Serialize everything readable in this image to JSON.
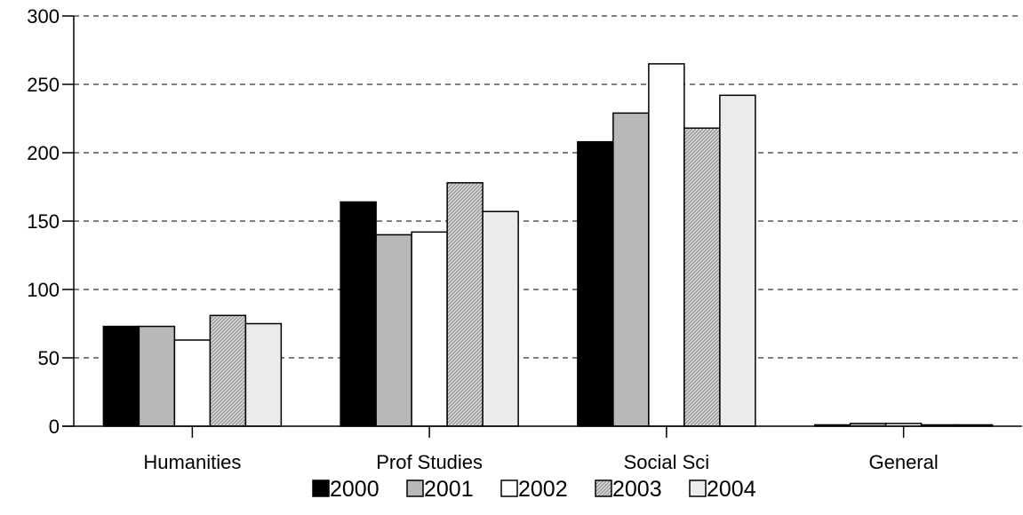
{
  "chart_data": {
    "type": "bar",
    "categories": [
      "Humanities",
      "Prof Studies",
      "Social Sci",
      "General"
    ],
    "series": [
      {
        "name": "2000",
        "values": [
          73,
          164,
          208,
          1
        ],
        "color": "#000000",
        "pattern": "solid"
      },
      {
        "name": "2001",
        "values": [
          73,
          140,
          229,
          2
        ],
        "color": "#b8b8b8",
        "pattern": "solid"
      },
      {
        "name": "2002",
        "values": [
          63,
          142,
          265,
          2
        ],
        "color": "#ffffff",
        "pattern": "solid"
      },
      {
        "name": "2003",
        "values": [
          81,
          178,
          218,
          1
        ],
        "color": "#c8c8c8",
        "pattern": "diagonal-hatch"
      },
      {
        "name": "2004",
        "values": [
          75,
          157,
          242,
          1
        ],
        "color": "#ebebeb",
        "pattern": "solid"
      }
    ],
    "title": "",
    "xlabel": "",
    "ylabel": "",
    "ylim": [
      0,
      300
    ],
    "yticks": [
      "0",
      "50",
      "100",
      "150",
      "200",
      "250",
      "300"
    ],
    "grid": "horizontal dashed",
    "legend_position": "bottom"
  }
}
